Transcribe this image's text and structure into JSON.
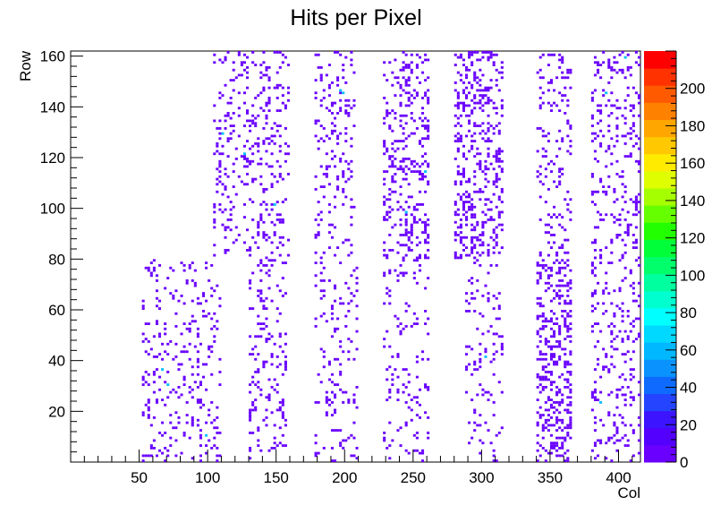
{
  "chart_data": {
    "type": "heatmap",
    "title": "Hits per Pixel",
    "xlabel": "Col",
    "ylabel": "Row",
    "xlim": [
      0,
      416
    ],
    "ylim": [
      0,
      162
    ],
    "x_ticks": [
      50,
      100,
      150,
      200,
      250,
      300,
      350,
      400
    ],
    "y_ticks": [
      20,
      40,
      60,
      80,
      100,
      120,
      140,
      160
    ],
    "z_range": [
      0,
      220
    ],
    "z_ticks": [
      0,
      20,
      40,
      60,
      80,
      100,
      120,
      140,
      160,
      180,
      200
    ],
    "palette": [
      "#6a00ff",
      "#5300ff",
      "#3c14ff",
      "#2444ff",
      "#0f6bff",
      "#0a93ff",
      "#00b8ff",
      "#00d9ff",
      "#00ffff",
      "#00ffcf",
      "#00ff9e",
      "#00ff6b",
      "#00ff38",
      "#22ff00",
      "#66ff00",
      "#a6ff00",
      "#dfff00",
      "#ffeb00",
      "#ffc800",
      "#ffa600",
      "#ff8100",
      "#ff5a00",
      "#ff3200",
      "#ff0000"
    ],
    "hit_color": "#6a00ff",
    "hot_color": "#00bfff",
    "typical_hits_per_active_pixel": 1,
    "occupancy_regions": [
      {
        "rows": [
          0,
          80
        ],
        "cols": [
          52,
          110
        ],
        "density": 0.12
      },
      {
        "rows": [
          0,
          80
        ],
        "cols": [
          130,
          158
        ],
        "density": 0.14
      },
      {
        "rows": [
          0,
          80
        ],
        "cols": [
          178,
          210
        ],
        "density": 0.13
      },
      {
        "rows": [
          0,
          80
        ],
        "cols": [
          228,
          262
        ],
        "density": 0.1
      },
      {
        "rows": [
          0,
          80
        ],
        "cols": [
          288,
          316
        ],
        "density": 0.09
      },
      {
        "rows": [
          0,
          80
        ],
        "cols": [
          340,
          366
        ],
        "density": 0.3
      },
      {
        "rows": [
          0,
          80
        ],
        "cols": [
          380,
          416
        ],
        "density": 0.14
      },
      {
        "rows": [
          80,
          162
        ],
        "cols": [
          104,
          160
        ],
        "density": 0.15
      },
      {
        "rows": [
          80,
          162
        ],
        "cols": [
          178,
          208
        ],
        "density": 0.14
      },
      {
        "rows": [
          80,
          162
        ],
        "cols": [
          228,
          262
        ],
        "density": 0.2
      },
      {
        "rows": [
          80,
          162
        ],
        "cols": [
          280,
          316
        ],
        "density": 0.25
      },
      {
        "rows": [
          80,
          162
        ],
        "cols": [
          340,
          366
        ],
        "density": 0.14
      },
      {
        "rows": [
          80,
          162
        ],
        "cols": [
          380,
          416
        ],
        "density": 0.16
      }
    ]
  }
}
